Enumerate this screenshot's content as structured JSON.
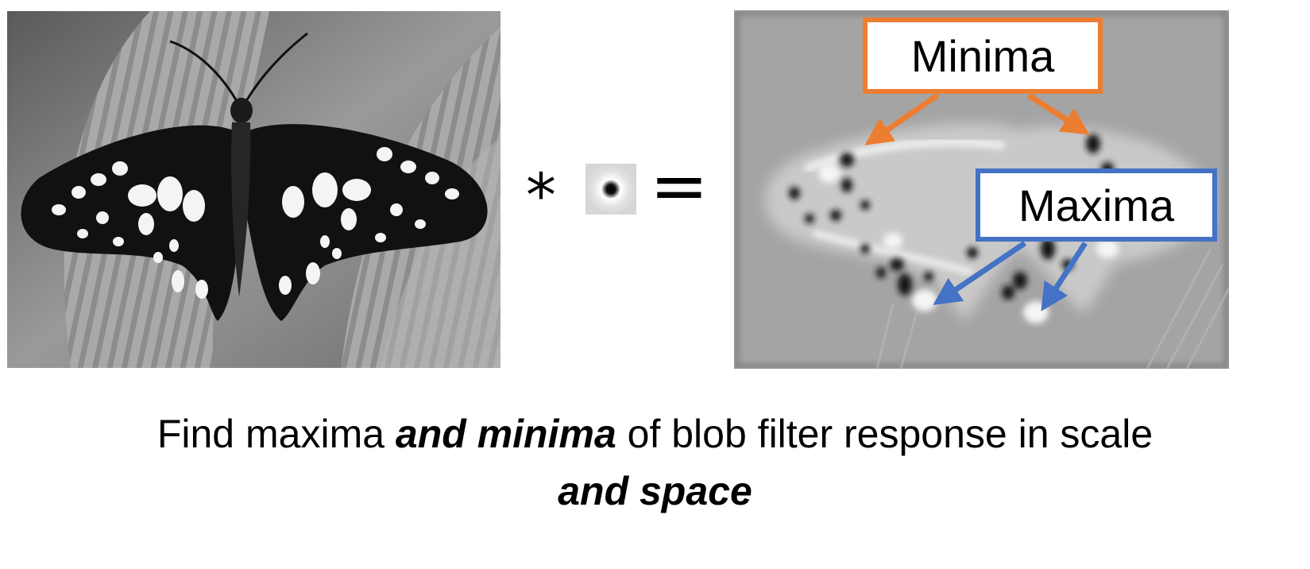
{
  "equation": {
    "operator_star": "*",
    "operator_equals": "="
  },
  "callouts": {
    "minima_label": "Minima",
    "maxima_label": "Maxima",
    "minima_color": "#ed7d31",
    "maxima_color": "#4472c4"
  },
  "caption": {
    "part1": "Find maxima ",
    "emph1": "and minima",
    "part2": " of blob filter response in scale",
    "emph2": "and space"
  },
  "images": {
    "source_photo": "butterfly-grayscale-photo",
    "kernel": "blob-filter-kernel",
    "response_map": "filter-response-map"
  }
}
